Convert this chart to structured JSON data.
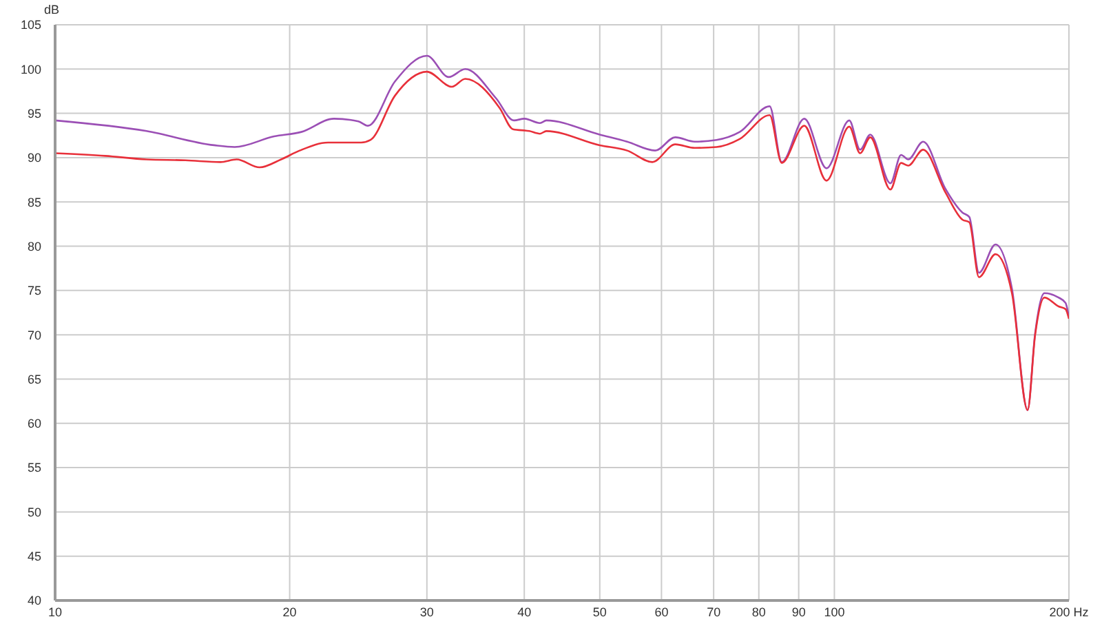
{
  "chart_data": {
    "type": "line",
    "ylabel": "dB",
    "log": "x",
    "grid": true,
    "legend": false,
    "marker": "none",
    "line_style": "solid",
    "xlim": [
      10,
      200
    ],
    "xticks": [
      10,
      20,
      30,
      40,
      50,
      60,
      70,
      80,
      90,
      100,
      {
        "value": 200,
        "label": "200 Hz"
      }
    ],
    "ylim": [
      40,
      105
    ],
    "yticks": [
      40,
      45,
      50,
      55,
      60,
      65,
      70,
      75,
      80,
      85,
      90,
      95,
      100,
      105
    ],
    "series": [
      {
        "color": "#9b4fb5",
        "x": [
          10,
          13.1,
          16,
          17,
          19.1,
          20.7,
          22.8,
          24.5,
          25.2,
          27.3,
          30,
          32,
          33.6,
          36.8,
          38.8,
          40,
          41.9,
          42.7,
          50,
          54.2,
          58.9,
          62.5,
          66.2,
          70.6,
          75.6,
          82.6,
          85.6,
          91.5,
          97.7,
          104.5,
          107.9,
          111.2,
          118,
          121.8,
          124.4,
          130,
          138.8,
          146,
          149,
          153.3,
          161,
          169,
          177,
          181,
          186,
          194,
          198,
          200
        ],
        "values": [
          94.2,
          93.0,
          91.4,
          91.2,
          92.4,
          92.9,
          94.4,
          94.1,
          93.6,
          98.6,
          101.5,
          99.1,
          100.0,
          96.7,
          94.2,
          94.4,
          93.9,
          94.2,
          92.6,
          91.8,
          90.8,
          92.3,
          91.8,
          92.0,
          92.9,
          95.8,
          89.5,
          94.4,
          88.8,
          94.2,
          90.9,
          92.6,
          87.1,
          90.3,
          89.8,
          91.8,
          86.5,
          83.8,
          83.3,
          77.0,
          80.2,
          75.2,
          61.5,
          70.2,
          74.7,
          74.2,
          73.6,
          72.0
        ]
      },
      {
        "color": "#e8303a",
        "x": [
          10,
          11.6,
          13.1,
          14.7,
          16.3,
          17.1,
          18.3,
          19.5,
          20.6,
          22.4,
          24.7,
          25.4,
          27.3,
          30,
          32.3,
          33.6,
          37.2,
          38.7,
          40.6,
          41.9,
          42.7,
          50,
          54.2,
          58.4,
          62.5,
          66.2,
          70.6,
          75.6,
          82.6,
          85.6,
          91.5,
          97.7,
          104.5,
          107.9,
          111.2,
          118,
          121.8,
          124.4,
          130,
          138.8,
          146,
          149,
          153.3,
          161,
          169,
          177,
          181,
          186,
          194,
          198,
          200
        ],
        "values": [
          90.5,
          90.2,
          89.8,
          89.7,
          89.5,
          89.8,
          88.9,
          89.8,
          90.8,
          91.7,
          91.7,
          92.0,
          97.0,
          99.7,
          98.0,
          98.9,
          95.6,
          93.2,
          93.0,
          92.7,
          93.0,
          91.4,
          90.8,
          89.5,
          91.5,
          91.1,
          91.2,
          92.1,
          94.8,
          89.4,
          93.6,
          87.4,
          93.5,
          90.5,
          92.3,
          86.4,
          89.4,
          89.1,
          90.9,
          86.1,
          83.0,
          82.7,
          76.5,
          79.1,
          74.7,
          61.5,
          70.0,
          74.2,
          73.2,
          72.9,
          71.8
        ]
      }
    ]
  }
}
